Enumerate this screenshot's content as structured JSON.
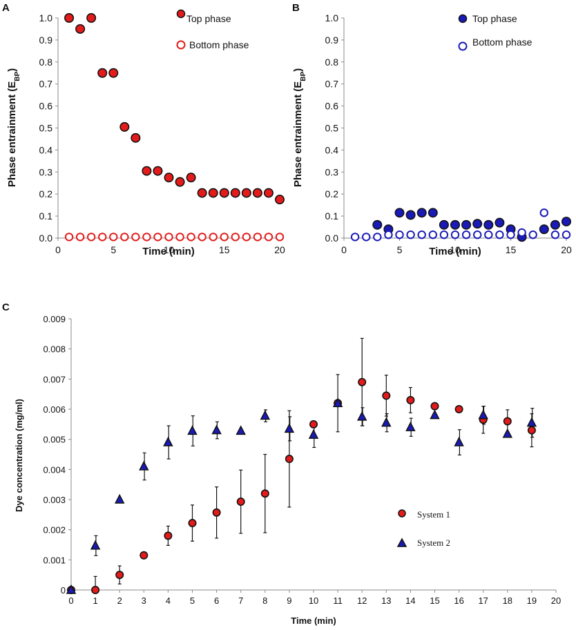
{
  "chart_data": [
    {
      "panel": "A",
      "type": "scatter",
      "title": "",
      "xlabel": "Time (min)",
      "ylabel": "Phase entrainment (E",
      "ylabel_sub": "BP",
      "ylabel_close": ")",
      "xlim": [
        0,
        20
      ],
      "ylim": [
        0,
        1.0
      ],
      "xticks": [
        "0",
        "5",
        "10",
        "15",
        "20"
      ],
      "yticks": [
        "0.0",
        "0.1",
        "0.2",
        "0.3",
        "0.4",
        "0.5",
        "0.6",
        "0.7",
        "0.8",
        "0.9",
        "1.0"
      ],
      "legend_position": "top-right",
      "series": [
        {
          "name": "Top phase",
          "color": "#e31b1b",
          "filled": true,
          "x": [
            1,
            2,
            3,
            4,
            5,
            6,
            7,
            8,
            9,
            10,
            11,
            12,
            13,
            14,
            15,
            16,
            17,
            18,
            19,
            20
          ],
          "y": [
            1.0,
            0.95,
            1.0,
            0.75,
            0.75,
            0.505,
            0.455,
            0.305,
            0.305,
            0.275,
            0.255,
            0.275,
            0.205,
            0.205,
            0.205,
            0.205,
            0.205,
            0.205,
            0.205,
            0.175
          ]
        },
        {
          "name": "Bottom phase",
          "color": "#e31b1b",
          "filled": false,
          "x": [
            1,
            2,
            3,
            4,
            5,
            6,
            7,
            8,
            9,
            10,
            11,
            12,
            13,
            14,
            15,
            16,
            17,
            18,
            19,
            20
          ],
          "y": [
            0.005,
            0.005,
            0.005,
            0.005,
            0.005,
            0.005,
            0.005,
            0.005,
            0.005,
            0.005,
            0.005,
            0.005,
            0.005,
            0.005,
            0.005,
            0.005,
            0.005,
            0.005,
            0.005,
            0.005
          ]
        }
      ]
    },
    {
      "panel": "B",
      "type": "scatter",
      "title": "",
      "xlabel": "Time (min)",
      "ylabel": "Phase entrainment (E",
      "ylabel_sub": "BP",
      "ylabel_close": ")",
      "xlim": [
        0,
        20
      ],
      "ylim": [
        0,
        1.0
      ],
      "xticks": [
        "0",
        "5",
        "10",
        "15",
        "20"
      ],
      "yticks": [
        "0.0",
        "0.1",
        "0.2",
        "0.3",
        "0.4",
        "0.5",
        "0.6",
        "0.7",
        "0.8",
        "0.9",
        "1.0"
      ],
      "legend_position": "top-right",
      "series": [
        {
          "name": "Top phase",
          "color": "#1a1ab8",
          "filled": true,
          "x": [
            3,
            4,
            5,
            6,
            7,
            8,
            9,
            10,
            11,
            12,
            13,
            14,
            15,
            16,
            18,
            19,
            20
          ],
          "y": [
            0.06,
            0.04,
            0.115,
            0.105,
            0.115,
            0.115,
            0.06,
            0.06,
            0.06,
            0.065,
            0.06,
            0.07,
            0.04,
            0.005,
            0.04,
            0.06,
            0.075
          ]
        },
        {
          "name": "Bottom phase",
          "color": "#1a1ab8",
          "filled": false,
          "x": [
            1,
            2,
            3,
            4,
            5,
            6,
            7,
            8,
            9,
            10,
            11,
            12,
            13,
            14,
            15,
            16,
            17,
            18,
            19,
            20
          ],
          "y": [
            0.005,
            0.005,
            0.005,
            0.015,
            0.015,
            0.015,
            0.015,
            0.015,
            0.015,
            0.015,
            0.015,
            0.015,
            0.015,
            0.015,
            0.015,
            0.025,
            0.015,
            0.115,
            0.015,
            0.015
          ]
        }
      ]
    },
    {
      "panel": "C",
      "type": "scatter",
      "title": "",
      "xlabel": "Time (min)",
      "ylabel": "Dye concentration (mg/ml)",
      "xlim": [
        0,
        20
      ],
      "ylim": [
        0,
        0.009
      ],
      "xticks": [
        "0",
        "1",
        "2",
        "3",
        "4",
        "5",
        "6",
        "7",
        "8",
        "9",
        "10",
        "11",
        "12",
        "13",
        "14",
        "15",
        "16",
        "17",
        "18",
        "19",
        "20"
      ],
      "yticks": [
        "0",
        "0.001",
        "0.002",
        "0.003",
        "0.004",
        "0.005",
        "0.006",
        "0.007",
        "0.008",
        "0.009"
      ],
      "legend_position": "center",
      "series": [
        {
          "name": "System 1",
          "marker": "circle",
          "color": "#e31b1b",
          "x": [
            0,
            1,
            2,
            3,
            4,
            5,
            6,
            7,
            8,
            9,
            10,
            11,
            12,
            13,
            14,
            15,
            16,
            17,
            18,
            19
          ],
          "y": [
            0,
            0,
            0.0005,
            0.00115,
            0.0018,
            0.00222,
            0.00257,
            0.00293,
            0.0032,
            0.00435,
            0.0055,
            0.0062,
            0.0069,
            0.00645,
            0.0063,
            0.0061,
            0.006,
            0.00565,
            0.0056,
            0.0053
          ],
          "err": [
            0,
            0.00045,
            0.0003,
            0,
            0.00032,
            0.0006,
            0.00085,
            0.00105,
            0.0013,
            0.0016,
            0,
            0.00095,
            0.00145,
            0.00068,
            0.00042,
            0,
            0,
            0.00045,
            0.00038,
            0.00055
          ]
        },
        {
          "name": "System 2",
          "marker": "triangle",
          "color": "#1a1ab8",
          "x": [
            0,
            1,
            2,
            3,
            4,
            5,
            6,
            7,
            8,
            9,
            10,
            11,
            12,
            13,
            14,
            15,
            16,
            17,
            18,
            19
          ],
          "y": [
            0,
            0.00147,
            0.003,
            0.0041,
            0.0049,
            0.00528,
            0.0053,
            0.00528,
            0.00578,
            0.00535,
            0.00515,
            0.0062,
            0.00575,
            0.00555,
            0.0054,
            0.0058,
            0.0049,
            0.0058,
            0.00518,
            0.00555
          ],
          "err": [
            0,
            0.00033,
            0,
            0.00045,
            0.00055,
            0.0005,
            0.00028,
            0,
            0.0002,
            0.0004,
            0.00042,
            0,
            0.0003,
            0.0003,
            0.0003,
            0,
            0.00042,
            0.0003,
            0,
            0.00048
          ]
        }
      ]
    }
  ]
}
